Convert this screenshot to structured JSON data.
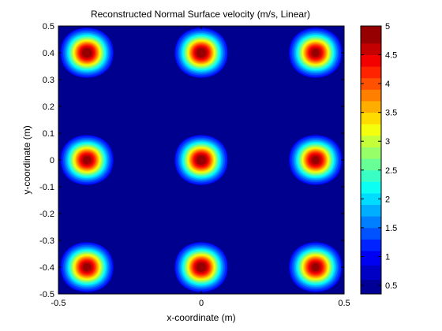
{
  "chart_data": {
    "type": "heatmap",
    "subtype": "filled-contour",
    "title": "Reconstructed Normal Surface velocity (m/s, Linear)",
    "xlabel": "x-coordinate (m)",
    "ylabel": "y-coordinate (m)",
    "xlim": [
      -0.5,
      0.5
    ],
    "ylim": [
      -0.5,
      0.5
    ],
    "x_ticks": [
      "-0.5",
      "0",
      "0.5"
    ],
    "y_ticks": [
      "0.5",
      "0.4",
      "0.3",
      "0.2",
      "0.1",
      "0",
      "-0.1",
      "-0.2",
      "-0.3",
      "-0.4",
      "-0.5"
    ],
    "grid": false,
    "peaks": [
      {
        "x": -0.4,
        "y": 0.4,
        "value": 5.0
      },
      {
        "x": 0.0,
        "y": 0.4,
        "value": 5.0
      },
      {
        "x": 0.4,
        "y": 0.4,
        "value": 4.9
      },
      {
        "x": -0.4,
        "y": 0.0,
        "value": 4.9
      },
      {
        "x": 0.0,
        "y": 0.0,
        "value": 5.0
      },
      {
        "x": 0.4,
        "y": 0.0,
        "value": 4.9
      },
      {
        "x": -0.4,
        "y": -0.4,
        "value": 4.9
      },
      {
        "x": 0.0,
        "y": -0.4,
        "value": 5.0
      },
      {
        "x": 0.4,
        "y": -0.4,
        "value": 4.9
      }
    ],
    "background_value": 0.4,
    "colorbar": {
      "colormap": "jet",
      "range": [
        0.35,
        5.0
      ],
      "ticks": [
        "5",
        "4.5",
        "4",
        "3.5",
        "3",
        "2.5",
        "2",
        "1.5",
        "1",
        "0.5"
      ],
      "levels": [
        0.35,
        0.6,
        0.85,
        1.1,
        1.3,
        1.5,
        1.7,
        1.9,
        2.1,
        2.3,
        2.5,
        2.7,
        2.9,
        3.1,
        3.3,
        3.5,
        3.7,
        3.9,
        4.1,
        4.3,
        4.5,
        4.7,
        5.0
      ]
    }
  }
}
